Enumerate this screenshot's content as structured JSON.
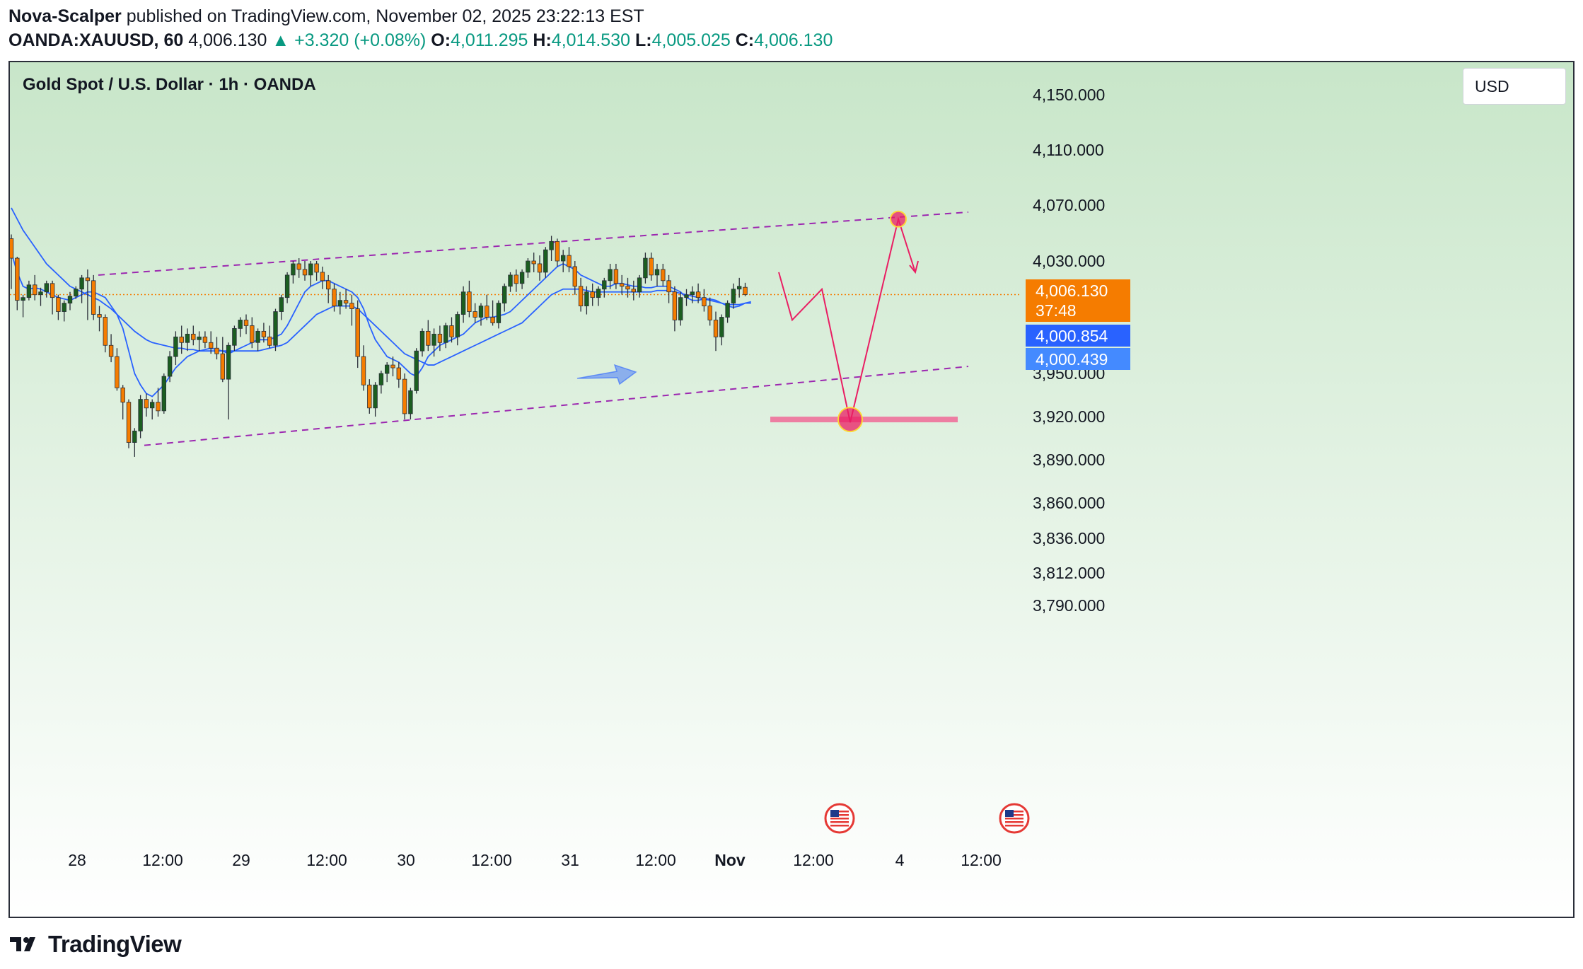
{
  "header": {
    "author": "Nova-Scalper",
    "published_text": "published on TradingView.com, November 02, 2025 23:22:13 EST",
    "symbol": "OANDA:XAUUSD, 60",
    "last": "4,006.130",
    "change": "+3.320 (+0.08%)",
    "o_label": "O:",
    "o": "4,011.295",
    "h_label": "H:",
    "h": "4,014.530",
    "l_label": "L:",
    "l": "4,005.025",
    "c_label": "C:",
    "c": "4,006.130"
  },
  "chart": {
    "legend_title": "Gold Spot / U.S. Dollar · 1h · OANDA",
    "currency_button": "USD",
    "price_tag_last": "4,006.130",
    "price_tag_countdown": "37:48",
    "price_tag_ma1": "4,000.854",
    "price_tag_ma2": "4,000.439"
  },
  "colors": {
    "up": "#1b5e20",
    "down": "#f57c00",
    "ma": "#2962ff",
    "channel": "#9c27b0",
    "projection": "#e91e63",
    "zone": "#f06292",
    "price_tag": "#f57c00",
    "ma_tag": "#2962ff"
  },
  "chart_data": {
    "type": "candlestick",
    "y_ticks": [
      "4,150.000",
      "4,110.000",
      "4,070.000",
      "4,030.000",
      "3,950.000",
      "3,920.000",
      "3,890.000",
      "3,860.000",
      "3,836.000",
      "3,812.000",
      "3,790.000"
    ],
    "x_ticks": [
      "28",
      "12:00",
      "29",
      "12:00",
      "30",
      "12:00",
      "31",
      "12:00",
      "Nov",
      "12:00",
      "4",
      "12:00"
    ],
    "last_price": 4006.13,
    "candles": [
      [
        4046,
        4049,
        4010,
        4032
      ],
      [
        4032,
        4033,
        3995,
        4002
      ],
      [
        4002,
        4006,
        3990,
        4004
      ],
      [
        4004,
        4016,
        4002,
        4013
      ],
      [
        4013,
        4020,
        4002,
        4006
      ],
      [
        4006,
        4011,
        3998,
        4008
      ],
      [
        4008,
        4016,
        4004,
        4014
      ],
      [
        4014,
        4016,
        3992,
        4004
      ],
      [
        4004,
        4006,
        3988,
        3994
      ],
      [
        3994,
        4002,
        3987,
        4000
      ],
      [
        4000,
        4008,
        3995,
        4005
      ],
      [
        4005,
        4012,
        4003,
        4010
      ],
      [
        4010,
        4020,
        4000,
        4018
      ],
      [
        4018,
        4024,
        3988,
        4016
      ],
      [
        4016,
        4020,
        3988,
        3992
      ],
      [
        3992,
        3998,
        3980,
        3990
      ],
      [
        3990,
        3992,
        3965,
        3970
      ],
      [
        3970,
        3978,
        3958,
        3962
      ],
      [
        3962,
        3968,
        3938,
        3940
      ],
      [
        3940,
        3942,
        3918,
        3930
      ],
      [
        3930,
        3932,
        3898,
        3902
      ],
      [
        3902,
        3912,
        3892,
        3910
      ],
      [
        3910,
        3935,
        3905,
        3932
      ],
      [
        3932,
        3936,
        3920,
        3926
      ],
      [
        3926,
        3932,
        3918,
        3930
      ],
      [
        3930,
        3940,
        3920,
        3924
      ],
      [
        3924,
        3950,
        3922,
        3948
      ],
      [
        3948,
        3966,
        3944,
        3962
      ],
      [
        3962,
        3980,
        3956,
        3976
      ],
      [
        3976,
        3984,
        3964,
        3972
      ],
      [
        3972,
        3982,
        3966,
        3978
      ],
      [
        3978,
        3984,
        3970,
        3974
      ],
      [
        3974,
        3980,
        3966,
        3976
      ],
      [
        3976,
        3980,
        3968,
        3972
      ],
      [
        3972,
        3980,
        3964,
        3968
      ],
      [
        3968,
        3976,
        3960,
        3964
      ],
      [
        3964,
        3976,
        3944,
        3946
      ],
      [
        3946,
        3972,
        3918,
        3970
      ],
      [
        3970,
        3984,
        3966,
        3982
      ],
      [
        3982,
        3990,
        3976,
        3988
      ],
      [
        3988,
        3992,
        3978,
        3984
      ],
      [
        3984,
        3990,
        3968,
        3972
      ],
      [
        3972,
        3982,
        3966,
        3980
      ],
      [
        3980,
        3986,
        3972,
        3976
      ],
      [
        3976,
        3984,
        3968,
        3970
      ],
      [
        3970,
        3996,
        3966,
        3994
      ],
      [
        3994,
        4006,
        3988,
        4004
      ],
      [
        4004,
        4022,
        4000,
        4020
      ],
      [
        4020,
        4030,
        4014,
        4028
      ],
      [
        4028,
        4032,
        4018,
        4024
      ],
      [
        4024,
        4030,
        4016,
        4020
      ],
      [
        4020,
        4030,
        4012,
        4028
      ],
      [
        4028,
        4030,
        4016,
        4022
      ],
      [
        4022,
        4026,
        4010,
        4016
      ],
      [
        4016,
        4020,
        4000,
        4010
      ],
      [
        4010,
        4014,
        3994,
        3998
      ],
      [
        3998,
        4008,
        3992,
        4002
      ],
      [
        4002,
        4010,
        3996,
        4000
      ],
      [
        4000,
        4006,
        3984,
        3996
      ],
      [
        3996,
        4002,
        3954,
        3962
      ],
      [
        3962,
        3970,
        3938,
        3942
      ],
      [
        3942,
        3946,
        3922,
        3926
      ],
      [
        3926,
        3944,
        3920,
        3942
      ],
      [
        3942,
        3952,
        3936,
        3950
      ],
      [
        3950,
        3958,
        3944,
        3956
      ],
      [
        3956,
        3962,
        3948,
        3954
      ],
      [
        3954,
        3958,
        3940,
        3946
      ],
      [
        3946,
        3950,
        3918,
        3922
      ],
      [
        3922,
        3940,
        3918,
        3938
      ],
      [
        3938,
        3968,
        3936,
        3966
      ],
      [
        3966,
        3982,
        3962,
        3980
      ],
      [
        3980,
        3988,
        3966,
        3970
      ],
      [
        3970,
        3982,
        3962,
        3978
      ],
      [
        3978,
        3984,
        3966,
        3972
      ],
      [
        3972,
        3986,
        3968,
        3984
      ],
      [
        3984,
        3990,
        3972,
        3976
      ],
      [
        3976,
        3994,
        3970,
        3992
      ],
      [
        3992,
        4012,
        3986,
        4008
      ],
      [
        4008,
        4016,
        3990,
        3994
      ],
      [
        3994,
        4000,
        3986,
        3990
      ],
      [
        3990,
        4000,
        3984,
        3998
      ],
      [
        3998,
        4006,
        3988,
        3990
      ],
      [
        3990,
        4002,
        3984,
        3986
      ],
      [
        3986,
        4002,
        3982,
        4000
      ],
      [
        4000,
        4014,
        3994,
        4012
      ],
      [
        4012,
        4022,
        4008,
        4020
      ],
      [
        4020,
        4024,
        4008,
        4014
      ],
      [
        4014,
        4024,
        4010,
        4022
      ],
      [
        4022,
        4032,
        4018,
        4030
      ],
      [
        4030,
        4036,
        4022,
        4028
      ],
      [
        4028,
        4034,
        4016,
        4022
      ],
      [
        4022,
        4040,
        4018,
        4038
      ],
      [
        4038,
        4048,
        4030,
        4044
      ],
      [
        4044,
        4046,
        4026,
        4030
      ],
      [
        4030,
        4038,
        4022,
        4034
      ],
      [
        4034,
        4040,
        4022,
        4026
      ],
      [
        4026,
        4030,
        4006,
        4012
      ],
      [
        4012,
        4018,
        3994,
        3998
      ],
      [
        3998,
        4012,
        3992,
        4008
      ],
      [
        4008,
        4014,
        3998,
        4004
      ],
      [
        4004,
        4012,
        3998,
        4010
      ],
      [
        4010,
        4018,
        4004,
        4016
      ],
      [
        4016,
        4028,
        4010,
        4024
      ],
      [
        4024,
        4028,
        4010,
        4014
      ],
      [
        4014,
        4020,
        4006,
        4012
      ],
      [
        4012,
        4018,
        4004,
        4010
      ],
      [
        4010,
        4016,
        4002,
        4008
      ],
      [
        4008,
        4020,
        4004,
        4018
      ],
      [
        4018,
        4036,
        4014,
        4032
      ],
      [
        4032,
        4036,
        4016,
        4020
      ],
      [
        4020,
        4028,
        4012,
        4024
      ],
      [
        4024,
        4028,
        4012,
        4016
      ],
      [
        4016,
        4020,
        4000,
        4008
      ],
      [
        4008,
        4012,
        3980,
        3988
      ],
      [
        3988,
        4008,
        3984,
        4004
      ],
      [
        4004,
        4010,
        3998,
        4006
      ],
      [
        4006,
        4012,
        4000,
        4008
      ],
      [
        4008,
        4014,
        4000,
        4004
      ],
      [
        4004,
        4010,
        3994,
        3998
      ],
      [
        3998,
        4004,
        3984,
        3988
      ],
      [
        3988,
        3994,
        3966,
        3976
      ],
      [
        3976,
        3992,
        3970,
        3990
      ],
      [
        3990,
        4002,
        3986,
        4000
      ],
      [
        4000,
        4014,
        3996,
        4010
      ],
      [
        4010,
        4018,
        4004,
        4012
      ],
      [
        4011.3,
        4014.5,
        4005.0,
        4006.1
      ]
    ],
    "moving_averages": [
      {
        "label": "4,000.854",
        "values": [
          4036,
          4022,
          4012,
          4010,
          4011,
          4010,
          4008,
          4006,
          4004,
          4003,
          4002,
          4004,
          4006,
          4008,
          4008,
          4006,
          4004,
          3998,
          3992,
          3982,
          3966,
          3950,
          3942,
          3936,
          3934,
          3938,
          3942,
          3948,
          3954,
          3958,
          3962,
          3964,
          3966,
          3967,
          3968,
          3967,
          3966,
          3964,
          3966,
          3968,
          3970,
          3972,
          3974,
          3974,
          3974,
          3976,
          3978,
          3984,
          3992,
          4000,
          4008,
          4012,
          4014,
          4016,
          4016,
          4014,
          4012,
          4010,
          4008,
          4004,
          3996,
          3984,
          3974,
          3968,
          3962,
          3960,
          3958,
          3954,
          3950,
          3948,
          3954,
          3962,
          3966,
          3970,
          3972,
          3974,
          3976,
          3978,
          3982,
          3986,
          3988,
          3990,
          3990,
          3991,
          3992,
          3994,
          3998,
          4002,
          4006,
          4010,
          4014,
          4018,
          4022,
          4026,
          4028,
          4026,
          4024,
          4020,
          4018,
          4016,
          4014,
          4012,
          4012,
          4014,
          4014,
          4013,
          4012,
          4012,
          4011,
          4011,
          4012,
          4012,
          4012,
          4010,
          4008,
          4004,
          4002,
          4002,
          4003,
          4003,
          4002,
          4000,
          3998,
          3997,
          3998,
          4000,
          4001
        ]
      },
      {
        "label": "4,000.439",
        "values": [
          4068,
          4060,
          4052,
          4046,
          4040,
          4034,
          4028,
          4024,
          4020,
          4016,
          4012,
          4010,
          4008,
          4006,
          4004,
          4002,
          3999,
          3996,
          3992,
          3988,
          3984,
          3980,
          3977,
          3974,
          3972,
          3971,
          3970,
          3969,
          3968,
          3968,
          3967,
          3967,
          3966,
          3966,
          3966,
          3966,
          3966,
          3966,
          3966,
          3966,
          3966,
          3966,
          3966,
          3967,
          3968,
          3969,
          3970,
          3972,
          3976,
          3980,
          3984,
          3988,
          3992,
          3994,
          3996,
          3998,
          3998,
          3998,
          3998,
          3996,
          3992,
          3988,
          3984,
          3980,
          3976,
          3972,
          3968,
          3964,
          3962,
          3960,
          3958,
          3956,
          3956,
          3958,
          3960,
          3962,
          3964,
          3966,
          3968,
          3970,
          3972,
          3974,
          3976,
          3978,
          3980,
          3982,
          3984,
          3986,
          3990,
          3994,
          3998,
          4002,
          4006,
          4008,
          4010,
          4010,
          4010,
          4010,
          4009,
          4008,
          4008,
          4008,
          4008,
          4008,
          4008,
          4008,
          4008,
          4008,
          4008,
          4008,
          4009,
          4009,
          4009,
          4008,
          4007,
          4006,
          4005,
          4004,
          4003,
          4002,
          4001,
          4000,
          3999,
          3999,
          3999,
          4000,
          4000
        ]
      }
    ],
    "channel_upper": {
      "from": 4020,
      "to": 4065
    },
    "channel_lower": {
      "from": 3900,
      "to": 3955
    },
    "projection_path": [
      4022,
      3988,
      4010,
      3916,
      4060,
      4022
    ],
    "target_zone": 3918
  }
}
